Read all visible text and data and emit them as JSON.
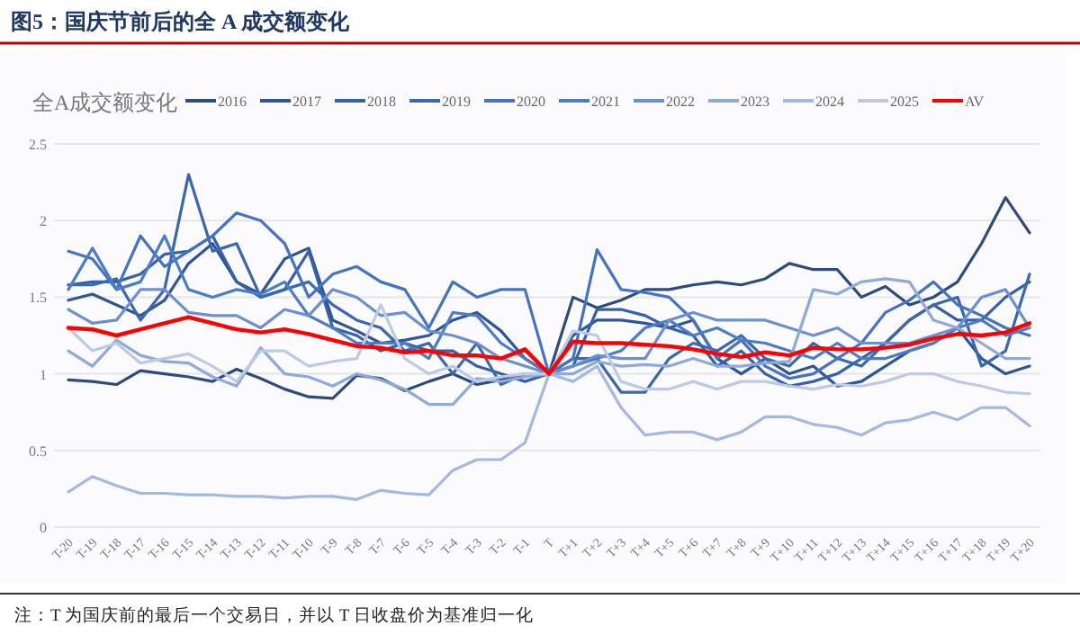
{
  "chart_data": {
    "type": "line",
    "title": "图5：国庆节前后的全 A 成交额变化",
    "subtitle": "全A成交额变化",
    "categories": [
      "T-20",
      "T-19",
      "T-18",
      "T-17",
      "T-16",
      "T-15",
      "T-14",
      "T-13",
      "T-12",
      "T-11",
      "T-10",
      "T-9",
      "T-8",
      "T-7",
      "T-6",
      "T-5",
      "T-4",
      "T-3",
      "T-2",
      "T-1",
      "T",
      "T+1",
      "T+2",
      "T+3",
      "T+4",
      "T+5",
      "T+6",
      "T+7",
      "T+8",
      "T+9",
      "T+10",
      "T+11",
      "T+12",
      "T+13",
      "T+14",
      "T+15",
      "T+16",
      "T+17",
      "T+18",
      "T+19",
      "T+20"
    ],
    "series": [
      {
        "name": "2016",
        "color": "#2f4b7c",
        "values": [
          0.96,
          0.95,
          0.93,
          1.02,
          1.0,
          0.98,
          0.95,
          1.03,
          0.97,
          0.9,
          0.85,
          0.84,
          0.99,
          0.97,
          0.89,
          0.95,
          1.0,
          0.93,
          0.96,
          1.0,
          1,
          1.5,
          1.43,
          1.48,
          1.55,
          1.55,
          1.58,
          1.6,
          1.58,
          1.62,
          1.72,
          1.68,
          1.68,
          1.5,
          1.57,
          1.45,
          1.5,
          1.6,
          1.85,
          2.15,
          1.92
        ]
      },
      {
        "name": "2017",
        "color": "#2e5596",
        "values": [
          1.48,
          1.52,
          1.45,
          1.38,
          1.48,
          1.72,
          1.85,
          1.6,
          1.52,
          1.75,
          1.82,
          1.35,
          1.28,
          1.2,
          1.22,
          1.25,
          1.35,
          1.4,
          1.28,
          1.1,
          1,
          1.25,
          1.35,
          1.35,
          1.33,
          1.3,
          1.35,
          1.1,
          1.0,
          1.1,
          1.0,
          1.05,
          0.92,
          0.95,
          1.05,
          1.15,
          1.2,
          1.3,
          1.1,
          1.0,
          1.05
        ]
      },
      {
        "name": "2018",
        "color": "#3461a8",
        "values": [
          1.58,
          1.6,
          1.6,
          1.65,
          1.78,
          1.8,
          1.9,
          1.6,
          1.5,
          1.55,
          1.8,
          1.3,
          1.25,
          1.15,
          1.2,
          1.15,
          1.15,
          1.05,
          1.0,
          0.95,
          1,
          1.05,
          1.42,
          1.42,
          1.38,
          1.3,
          1.25,
          1.05,
          1.15,
          1.0,
          0.92,
          0.95,
          1.0,
          1.1,
          1.2,
          1.35,
          1.45,
          1.35,
          1.35,
          1.5,
          1.6
        ]
      },
      {
        "name": "2019",
        "color": "#3a67b0",
        "values": [
          1.58,
          1.58,
          1.62,
          1.35,
          1.55,
          2.3,
          1.8,
          1.85,
          1.5,
          1.55,
          1.6,
          1.45,
          1.35,
          1.3,
          1.15,
          1.2,
          1.0,
          1.2,
          0.93,
          1.0,
          1,
          1.1,
          1.1,
          0.88,
          0.88,
          1.1,
          1.2,
          1.15,
          1.25,
          1.1,
          1.05,
          1.2,
          1.1,
          1.05,
          1.2,
          1.35,
          1.45,
          1.5,
          1.05,
          1.15,
          1.65
        ]
      },
      {
        "name": "2020",
        "color": "#4472c4",
        "values": [
          1.8,
          1.75,
          1.55,
          1.9,
          1.7,
          1.8,
          1.9,
          2.05,
          2.0,
          1.85,
          1.5,
          1.65,
          1.7,
          1.6,
          1.55,
          1.3,
          1.6,
          1.5,
          1.55,
          1.55,
          1,
          1.1,
          1.81,
          1.55,
          1.53,
          1.5,
          1.35,
          1.1,
          1.22,
          1.05,
          0.97,
          1.0,
          1.1,
          1.2,
          1.4,
          1.48,
          1.6,
          1.45,
          1.38,
          1.3,
          1.25
        ]
      },
      {
        "name": "2021",
        "color": "#4a7cc8",
        "values": [
          1.55,
          1.82,
          1.55,
          1.6,
          1.9,
          1.55,
          1.5,
          1.55,
          1.52,
          1.6,
          1.38,
          1.3,
          1.2,
          1.2,
          1.2,
          1.1,
          1.4,
          1.38,
          1.2,
          1.1,
          1,
          1.05,
          1.1,
          1.15,
          1.3,
          1.35,
          1.25,
          1.3,
          1.22,
          1.2,
          1.15,
          1.1,
          1.2,
          1.1,
          1.1,
          1.15,
          1.2,
          1.3,
          1.35,
          1.25,
          1.3
        ]
      },
      {
        "name": "2022",
        "color": "#6b8fd0",
        "values": [
          1.42,
          1.33,
          1.35,
          1.55,
          1.55,
          1.4,
          1.38,
          1.38,
          1.3,
          1.42,
          1.38,
          1.55,
          1.5,
          1.38,
          1.4,
          1.28,
          1.25,
          1.2,
          1.1,
          1.05,
          1,
          1.05,
          1.12,
          1.1,
          1.1,
          1.35,
          1.4,
          1.35,
          1.35,
          1.35,
          1.3,
          1.25,
          1.3,
          1.2,
          1.2,
          1.2,
          1.25,
          1.3,
          1.5,
          1.55,
          1.3
        ]
      },
      {
        "name": "2023",
        "color": "#8ea9db",
        "values": [
          1.15,
          1.05,
          1.22,
          1.12,
          1.08,
          1.07,
          0.98,
          0.92,
          1.17,
          1.0,
          0.98,
          0.92,
          1.0,
          0.96,
          0.9,
          0.8,
          0.8,
          0.97,
          0.95,
          0.98,
          1,
          1.0,
          1.08,
          1.05,
          1.06,
          1.05,
          1.1,
          1.05,
          1.05,
          1.07,
          1.08,
          1.55,
          1.52,
          1.6,
          1.62,
          1.6,
          1.35,
          1.3,
          1.2,
          1.1,
          1.1
        ]
      },
      {
        "name": "2024",
        "color": "#a3b8e2",
        "values": [
          0.23,
          0.33,
          0.27,
          0.22,
          0.22,
          0.21,
          0.21,
          0.2,
          0.2,
          0.19,
          0.2,
          0.2,
          0.18,
          0.24,
          0.22,
          0.21,
          0.37,
          0.44,
          0.44,
          0.55,
          1,
          0.95,
          1.05,
          0.78,
          0.6,
          0.62,
          0.62,
          0.57,
          0.62,
          0.72,
          0.72,
          0.67,
          0.65,
          0.6,
          0.68,
          0.7,
          0.75,
          0.7,
          0.78,
          0.78,
          0.66
        ]
      },
      {
        "name": "2025",
        "color": "#bccae8",
        "values": [
          1.3,
          1.15,
          1.2,
          1.07,
          1.1,
          1.13,
          1.05,
          0.95,
          1.15,
          1.15,
          1.05,
          1.08,
          1.1,
          1.45,
          1.1,
          1.0,
          1.05,
          0.95,
          0.98,
          1.0,
          1,
          1.28,
          1.25,
          0.95,
          0.9,
          0.9,
          0.95,
          0.9,
          0.95,
          0.95,
          0.92,
          0.9,
          0.93,
          0.92,
          0.95,
          1.0,
          1.0,
          0.95,
          0.92,
          0.88,
          0.87
        ]
      },
      {
        "name": "AV",
        "color": "#ff0000",
        "values": [
          1.3,
          1.29,
          1.25,
          1.29,
          1.33,
          1.37,
          1.33,
          1.29,
          1.27,
          1.29,
          1.26,
          1.22,
          1.18,
          1.17,
          1.14,
          1.15,
          1.12,
          1.12,
          1.1,
          1.16,
          1,
          1.21,
          1.2,
          1.2,
          1.19,
          1.18,
          1.16,
          1.13,
          1.11,
          1.14,
          1.12,
          1.17,
          1.16,
          1.16,
          1.17,
          1.19,
          1.23,
          1.26,
          1.25,
          1.27,
          1.33
        ]
      }
    ],
    "ylim": [
      0,
      2.5
    ],
    "yticks": [
      0,
      0.5,
      1,
      1.5,
      2,
      2.5
    ],
    "grid": "y",
    "legend": "top",
    "marker": "none",
    "line_style": "solid",
    "annotations": [
      "注：T 为国庆前的最后一个交易日，并以 T 日收盘价为基准归一化"
    ]
  }
}
